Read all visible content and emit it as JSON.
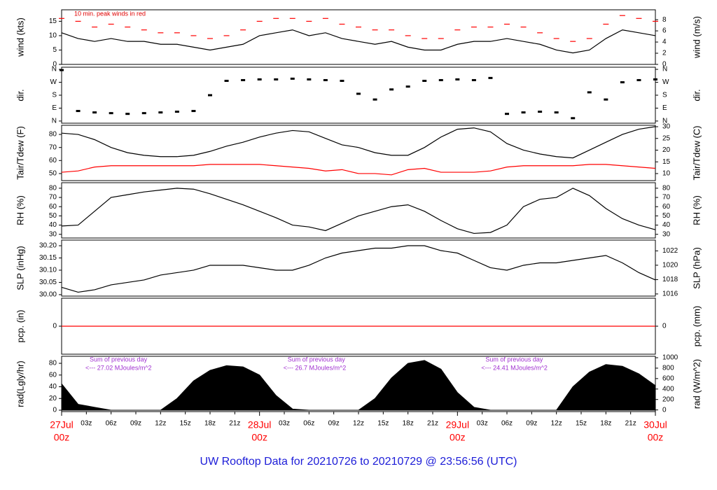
{
  "title": "UW Rooftop Data for 20210726  to  20210729 @ 23:56:56  (UTC)",
  "chart_data": [
    {
      "type": "line",
      "ylabel": "wind (kts)",
      "y2label": "wind (m/s)",
      "annotation": "10 min. peak winds in red",
      "x": [
        0,
        2,
        4,
        6,
        8,
        10,
        12,
        14,
        16,
        18,
        20,
        22,
        24,
        26,
        28,
        30,
        32,
        34,
        36,
        38,
        40,
        42,
        44,
        46,
        48,
        50,
        52,
        54,
        56,
        58,
        60,
        62,
        64,
        66,
        68,
        70,
        72
      ],
      "xlim": [
        0,
        72
      ],
      "ylim": [
        0,
        19
      ],
      "yticks": [
        0,
        5,
        10,
        15
      ],
      "y2lim": [
        0,
        9.77
      ],
      "y2ticks": [
        0,
        2,
        4,
        6,
        8
      ],
      "series": [
        {
          "color": "#000000",
          "values": [
            11,
            9,
            8,
            9,
            8,
            8,
            7,
            7,
            6,
            5,
            6,
            7,
            10,
            11,
            12,
            10,
            11,
            9,
            8,
            7,
            8,
            6,
            5,
            5,
            7,
            8,
            8,
            9,
            8,
            7,
            5,
            4,
            5,
            9,
            12,
            11,
            10
          ]
        },
        {
          "color": "#ff0000",
          "style": "dash",
          "values": [
            16,
            15,
            13,
            14,
            13,
            12,
            11,
            11,
            10,
            9,
            10,
            12,
            15,
            16,
            16,
            15,
            16,
            14,
            13,
            12,
            12,
            10,
            9,
            9,
            12,
            13,
            13,
            14,
            13,
            11,
            9,
            8,
            9,
            14,
            17,
            16,
            15
          ]
        }
      ]
    },
    {
      "type": "scatter",
      "ylabel": "dir.",
      "y2label": "dir.",
      "x": [
        0,
        2,
        4,
        6,
        8,
        10,
        12,
        14,
        16,
        18,
        20,
        22,
        24,
        26,
        28,
        30,
        32,
        34,
        36,
        38,
        40,
        42,
        44,
        46,
        48,
        50,
        52,
        54,
        56,
        58,
        60,
        62,
        64,
        66,
        68,
        70,
        72
      ],
      "xlim": [
        0,
        72
      ],
      "ylim": [
        -15,
        375
      ],
      "yticks": [
        {
          "value": 0,
          "label": "N"
        },
        {
          "value": 90,
          "label": "E"
        },
        {
          "value": 180,
          "label": "S"
        },
        {
          "value": 270,
          "label": "W"
        },
        {
          "value": 360,
          "label": "N"
        }
      ],
      "y2lim": [
        -15,
        375
      ],
      "y2ticks": [
        {
          "value": 0,
          "label": "N"
        },
        {
          "value": 90,
          "label": "E"
        },
        {
          "value": 180,
          "label": "S"
        },
        {
          "value": 270,
          "label": "W"
        },
        {
          "value": 360,
          "label": "N"
        }
      ],
      "series": [
        {
          "color": "#000000",
          "values": [
            355,
            70,
            60,
            55,
            50,
            55,
            60,
            65,
            70,
            180,
            280,
            285,
            290,
            290,
            295,
            290,
            285,
            280,
            190,
            150,
            220,
            240,
            280,
            285,
            290,
            285,
            300,
            50,
            60,
            65,
            60,
            20,
            200,
            150,
            270,
            285,
            290
          ]
        }
      ]
    },
    {
      "type": "line",
      "ylabel": "Tair/Tdew (F)",
      "y2label": "Tair/Tdew (C)",
      "x": [
        0,
        2,
        4,
        6,
        8,
        10,
        12,
        14,
        16,
        18,
        20,
        22,
        24,
        26,
        28,
        30,
        32,
        34,
        36,
        38,
        40,
        42,
        44,
        46,
        48,
        50,
        52,
        54,
        56,
        58,
        60,
        62,
        64,
        66,
        68,
        70,
        72
      ],
      "xlim": [
        0,
        72
      ],
      "ylim": [
        44.6,
        87
      ],
      "yticks": [
        50,
        60,
        70,
        80
      ],
      "y2lim": [
        7,
        30.6
      ],
      "y2ticks": [
        10,
        15,
        20,
        25,
        30
      ],
      "series": [
        {
          "color": "#000000",
          "values": [
            81,
            80,
            76,
            70,
            66,
            64,
            63,
            63,
            64,
            67,
            71,
            74,
            78,
            81,
            83,
            82,
            77,
            72,
            70,
            66,
            64,
            64,
            70,
            78,
            84,
            85,
            82,
            73,
            68,
            65,
            63,
            62,
            68,
            74,
            80,
            84,
            86
          ]
        },
        {
          "color": "#ff0000",
          "values": [
            51,
            52,
            55,
            56,
            56,
            56,
            56,
            56,
            56,
            57,
            57,
            57,
            57,
            56,
            55,
            54,
            52,
            53,
            50,
            50,
            49,
            53,
            54,
            51,
            51,
            51,
            52,
            55,
            56,
            56,
            56,
            56,
            57,
            57,
            56,
            55,
            54
          ]
        }
      ]
    },
    {
      "type": "line",
      "ylabel": "RH (%)",
      "y2label": "RH (%)",
      "x": [
        0,
        2,
        4,
        6,
        8,
        10,
        12,
        14,
        16,
        18,
        20,
        22,
        24,
        26,
        28,
        30,
        32,
        34,
        36,
        38,
        40,
        42,
        44,
        46,
        48,
        50,
        52,
        54,
        56,
        58,
        60,
        62,
        64,
        66,
        68,
        70,
        72
      ],
      "xlim": [
        0,
        72
      ],
      "ylim": [
        26,
        86
      ],
      "yticks": [
        30,
        40,
        50,
        60,
        70,
        80
      ],
      "y2lim": [
        26,
        86
      ],
      "y2ticks": [
        30,
        40,
        50,
        60,
        70,
        80
      ],
      "series": [
        {
          "color": "#000000",
          "values": [
            39,
            40,
            55,
            70,
            73,
            76,
            78,
            80,
            79,
            74,
            68,
            62,
            55,
            48,
            40,
            38,
            34,
            42,
            50,
            55,
            60,
            62,
            55,
            45,
            36,
            31,
            32,
            40,
            60,
            68,
            70,
            80,
            72,
            58,
            47,
            40,
            35
          ]
        }
      ]
    },
    {
      "type": "line",
      "ylabel": "SLP (inHg)",
      "y2label": "SLP (hPa)",
      "x": [
        0,
        2,
        4,
        6,
        8,
        10,
        12,
        14,
        16,
        18,
        20,
        22,
        24,
        26,
        28,
        30,
        32,
        34,
        36,
        38,
        40,
        42,
        44,
        46,
        48,
        50,
        52,
        54,
        56,
        58,
        60,
        62,
        64,
        66,
        68,
        70,
        72
      ],
      "xlim": [
        0,
        72
      ],
      "ylim": [
        29.994,
        30.223
      ],
      "yticks": [
        {
          "value": 30.0,
          "label": "30.00"
        },
        {
          "value": 30.05,
          "label": "30.05"
        },
        {
          "value": 30.1,
          "label": "30.10"
        },
        {
          "value": 30.15,
          "label": "30.15"
        },
        {
          "value": 30.2,
          "label": "30.20"
        }
      ],
      "y2lim": [
        1015.7,
        1023.5
      ],
      "y2ticks": [
        1016,
        1018,
        1020,
        1022
      ],
      "series": [
        {
          "color": "#000000",
          "values": [
            30.03,
            30.01,
            30.02,
            30.04,
            30.05,
            30.06,
            30.08,
            30.09,
            30.1,
            30.12,
            30.12,
            30.12,
            30.11,
            30.1,
            30.1,
            30.12,
            30.15,
            30.17,
            30.18,
            30.19,
            30.19,
            30.2,
            30.2,
            30.18,
            30.17,
            30.14,
            30.11,
            30.1,
            30.12,
            30.13,
            30.13,
            30.14,
            30.15,
            30.16,
            30.13,
            30.09,
            30.06
          ]
        }
      ]
    },
    {
      "type": "line",
      "ylabel": "pcp. (in)",
      "y2label": "pcp. (mm)",
      "x": [
        0,
        2,
        4,
        6,
        8,
        10,
        12,
        14,
        16,
        18,
        20,
        22,
        24,
        26,
        28,
        30,
        32,
        34,
        36,
        38,
        40,
        42,
        44,
        46,
        48,
        50,
        52,
        54,
        56,
        58,
        60,
        62,
        64,
        66,
        68,
        70,
        72
      ],
      "xlim": [
        0,
        72
      ],
      "ylim": [
        -1,
        1
      ],
      "yticks": [
        0
      ],
      "y2lim": [
        -25.4,
        25.4
      ],
      "y2ticks": [
        0
      ],
      "series": [
        {
          "color": "#ff0000",
          "values": [
            0,
            0,
            0,
            0,
            0,
            0,
            0,
            0,
            0,
            0,
            0,
            0,
            0,
            0,
            0,
            0,
            0,
            0,
            0,
            0,
            0,
            0,
            0,
            0,
            0,
            0,
            0,
            0,
            0,
            0,
            0,
            0,
            0,
            0,
            0,
            0,
            0
          ]
        }
      ]
    },
    {
      "type": "area",
      "ylabel": "rad(Lgly/hr)",
      "y2label": "rad (W/m^2)",
      "x": [
        0,
        2,
        4,
        6,
        8,
        10,
        12,
        14,
        16,
        18,
        20,
        22,
        24,
        26,
        28,
        30,
        32,
        34,
        36,
        38,
        40,
        42,
        44,
        46,
        48,
        50,
        52,
        54,
        56,
        58,
        60,
        62,
        64,
        66,
        68,
        70,
        72
      ],
      "xlim": [
        0,
        72
      ],
      "ylim": [
        -2.4,
        92
      ],
      "yticks": [
        0,
        20,
        40,
        60,
        80
      ],
      "y2lim": [
        -32,
        1027
      ],
      "y2ticks": [
        0,
        200,
        400,
        600,
        800,
        1000
      ],
      "annotations": [
        {
          "text": "Sum of previous day",
          "detail": "<--- 27.02 MJoules/m^2"
        },
        {
          "text": "Sum of previous day",
          "detail": "<--- 26.7 MJoules/m^2"
        },
        {
          "text": "Sum of previous day",
          "detail": "<--- 24.41 MJoules/m^2"
        }
      ],
      "xticks": [
        {
          "value": 3,
          "label": "03z"
        },
        {
          "value": 6,
          "label": "06z"
        },
        {
          "value": 9,
          "label": "09z"
        },
        {
          "value": 12,
          "label": "12z"
        },
        {
          "value": 15,
          "label": "15z"
        },
        {
          "value": 18,
          "label": "18z"
        },
        {
          "value": 21,
          "label": "21z"
        },
        {
          "value": 27,
          "label": "03z"
        },
        {
          "value": 30,
          "label": "06z"
        },
        {
          "value": 33,
          "label": "09z"
        },
        {
          "value": 36,
          "label": "12z"
        },
        {
          "value": 39,
          "label": "15z"
        },
        {
          "value": 42,
          "label": "18z"
        },
        {
          "value": 45,
          "label": "21z"
        },
        {
          "value": 51,
          "label": "03z"
        },
        {
          "value": 54,
          "label": "06z"
        },
        {
          "value": 57,
          "label": "09z"
        },
        {
          "value": 60,
          "label": "12z"
        },
        {
          "value": 63,
          "label": "15z"
        },
        {
          "value": 66,
          "label": "18z"
        },
        {
          "value": 69,
          "label": "21z"
        }
      ],
      "day_ticks": [
        {
          "value": 0,
          "label": "27Jul",
          "sublabel": "00z"
        },
        {
          "value": 24,
          "label": "28Jul",
          "sublabel": "00z"
        },
        {
          "value": 48,
          "label": "29Jul",
          "sublabel": "00z"
        },
        {
          "value": 72,
          "label": "30Jul",
          "sublabel": "00z"
        }
      ],
      "series": [
        {
          "color": "#000000",
          "values": [
            45,
            10,
            5,
            0,
            0,
            0,
            0,
            20,
            50,
            68,
            76,
            74,
            60,
            25,
            2,
            0,
            0,
            0,
            0,
            20,
            55,
            80,
            85,
            70,
            30,
            5,
            0,
            0,
            0,
            0,
            0,
            40,
            65,
            78,
            75,
            62,
            42
          ]
        }
      ]
    }
  ]
}
